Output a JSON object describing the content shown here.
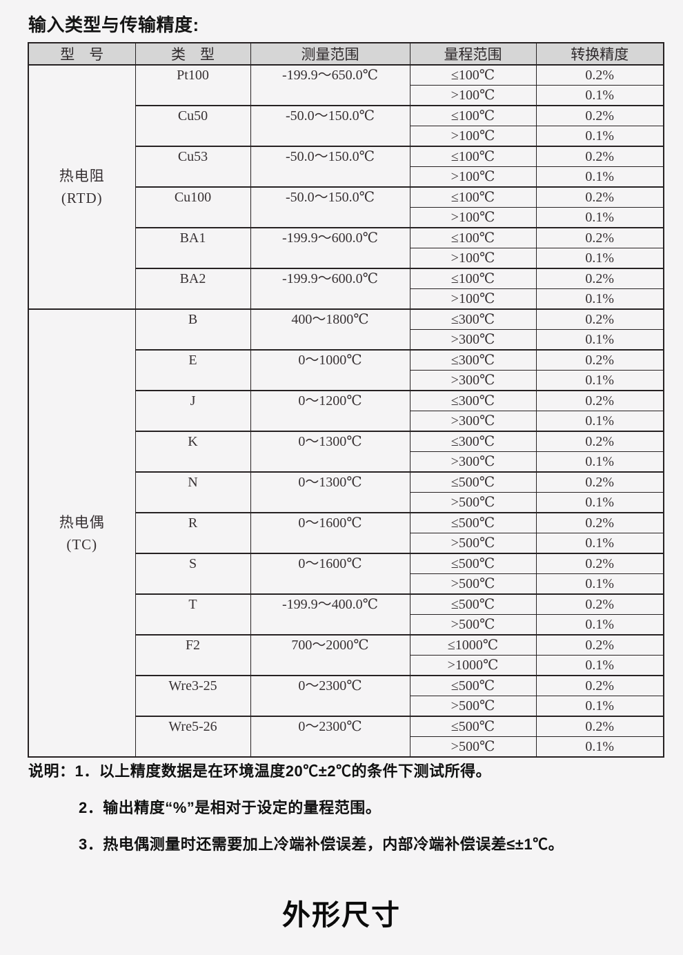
{
  "page": {
    "title": "输入类型与传输精度:",
    "section_heading": "外形尺寸",
    "colors": {
      "page_bg": "#f5f4f5",
      "header_bg": "#d6d6d6",
      "border": "#262122",
      "table_text": "#373133"
    }
  },
  "table": {
    "headers": [
      "型　号",
      "类　型",
      "测量范围",
      "量程范围",
      "转换精度"
    ],
    "groups": [
      {
        "id": "rtd",
        "model": "热电阻",
        "model_sub": "(RTD)",
        "rows": [
          {
            "type": "Pt100",
            "range": "-199.9～650.0℃",
            "bands": [
              {
                "span": "≤100℃",
                "accuracy": "0.2%"
              },
              {
                "span": ">100℃",
                "accuracy": "0.1%"
              }
            ]
          },
          {
            "type": "Cu50",
            "range": "-50.0～150.0℃",
            "bands": [
              {
                "span": "≤100℃",
                "accuracy": "0.2%"
              },
              {
                "span": ">100℃",
                "accuracy": "0.1%"
              }
            ]
          },
          {
            "type": "Cu53",
            "range": "-50.0～150.0℃",
            "bands": [
              {
                "span": "≤100℃",
                "accuracy": "0.2%"
              },
              {
                "span": ">100℃",
                "accuracy": "0.1%"
              }
            ]
          },
          {
            "type": "Cu100",
            "range": "-50.0～150.0℃",
            "bands": [
              {
                "span": "≤100℃",
                "accuracy": "0.2%"
              },
              {
                "span": ">100℃",
                "accuracy": "0.1%"
              }
            ]
          },
          {
            "type": "BA1",
            "range": "-199.9～600.0℃",
            "bands": [
              {
                "span": "≤100℃",
                "accuracy": "0.2%"
              },
              {
                "span": ">100℃",
                "accuracy": "0.1%"
              }
            ]
          },
          {
            "type": "BA2",
            "range": "-199.9～600.0℃",
            "bands": [
              {
                "span": "≤100℃",
                "accuracy": "0.2%"
              },
              {
                "span": ">100℃",
                "accuracy": "0.1%"
              }
            ]
          }
        ]
      },
      {
        "id": "tc",
        "model": "热电偶",
        "model_sub": "(TC)",
        "rows": [
          {
            "type": "B",
            "range": "400～1800℃",
            "bands": [
              {
                "span": "≤300℃",
                "accuracy": "0.2%"
              },
              {
                "span": ">300℃",
                "accuracy": "0.1%"
              }
            ]
          },
          {
            "type": "E",
            "range": "0～1000℃",
            "bands": [
              {
                "span": "≤300℃",
                "accuracy": "0.2%"
              },
              {
                "span": ">300℃",
                "accuracy": "0.1%"
              }
            ]
          },
          {
            "type": "J",
            "range": "0～1200℃",
            "bands": [
              {
                "span": "≤300℃",
                "accuracy": "0.2%"
              },
              {
                "span": ">300℃",
                "accuracy": "0.1%"
              }
            ]
          },
          {
            "type": "K",
            "range": "0～1300℃",
            "bands": [
              {
                "span": "≤300℃",
                "accuracy": "0.2%"
              },
              {
                "span": ">300℃",
                "accuracy": "0.1%"
              }
            ]
          },
          {
            "type": "N",
            "range": "0～1300℃",
            "bands": [
              {
                "span": "≤500℃",
                "accuracy": "0.2%"
              },
              {
                "span": ">500℃",
                "accuracy": "0.1%"
              }
            ]
          },
          {
            "type": "R",
            "range": "0～1600℃",
            "bands": [
              {
                "span": "≤500℃",
                "accuracy": "0.2%"
              },
              {
                "span": ">500℃",
                "accuracy": "0.1%"
              }
            ]
          },
          {
            "type": "S",
            "range": "0～1600℃",
            "bands": [
              {
                "span": "≤500℃",
                "accuracy": "0.2%"
              },
              {
                "span": ">500℃",
                "accuracy": "0.1%"
              }
            ]
          },
          {
            "type": "T",
            "range": "-199.9～400.0℃",
            "bands": [
              {
                "span": "≤500℃",
                "accuracy": "0.2%"
              },
              {
                "span": ">500℃",
                "accuracy": "0.1%"
              }
            ]
          },
          {
            "type": "F2",
            "range": "700～2000℃",
            "bands": [
              {
                "span": "≤1000℃",
                "accuracy": "0.2%"
              },
              {
                "span": ">1000℃",
                "accuracy": "0.1%"
              }
            ]
          },
          {
            "type": "Wre3-25",
            "range": "0～2300℃",
            "bands": [
              {
                "span": "≤500℃",
                "accuracy": "0.2%"
              },
              {
                "span": ">500℃",
                "accuracy": "0.1%"
              }
            ]
          },
          {
            "type": "Wre5-26",
            "range": "0～2300℃",
            "bands": [
              {
                "span": "≤500℃",
                "accuracy": "0.2%"
              },
              {
                "span": ">500℃",
                "accuracy": "0.1%"
              }
            ]
          }
        ]
      }
    ]
  },
  "notes": {
    "label": "说明：",
    "items": [
      "1．以上精度数据是在环境温度20℃±2℃的条件下测试所得。",
      "2．输出精度“%”是相对于设定的量程范围。",
      "3．热电偶测量时还需要加上冷端补偿误差，内部冷端补偿误差≤±1℃。"
    ]
  }
}
